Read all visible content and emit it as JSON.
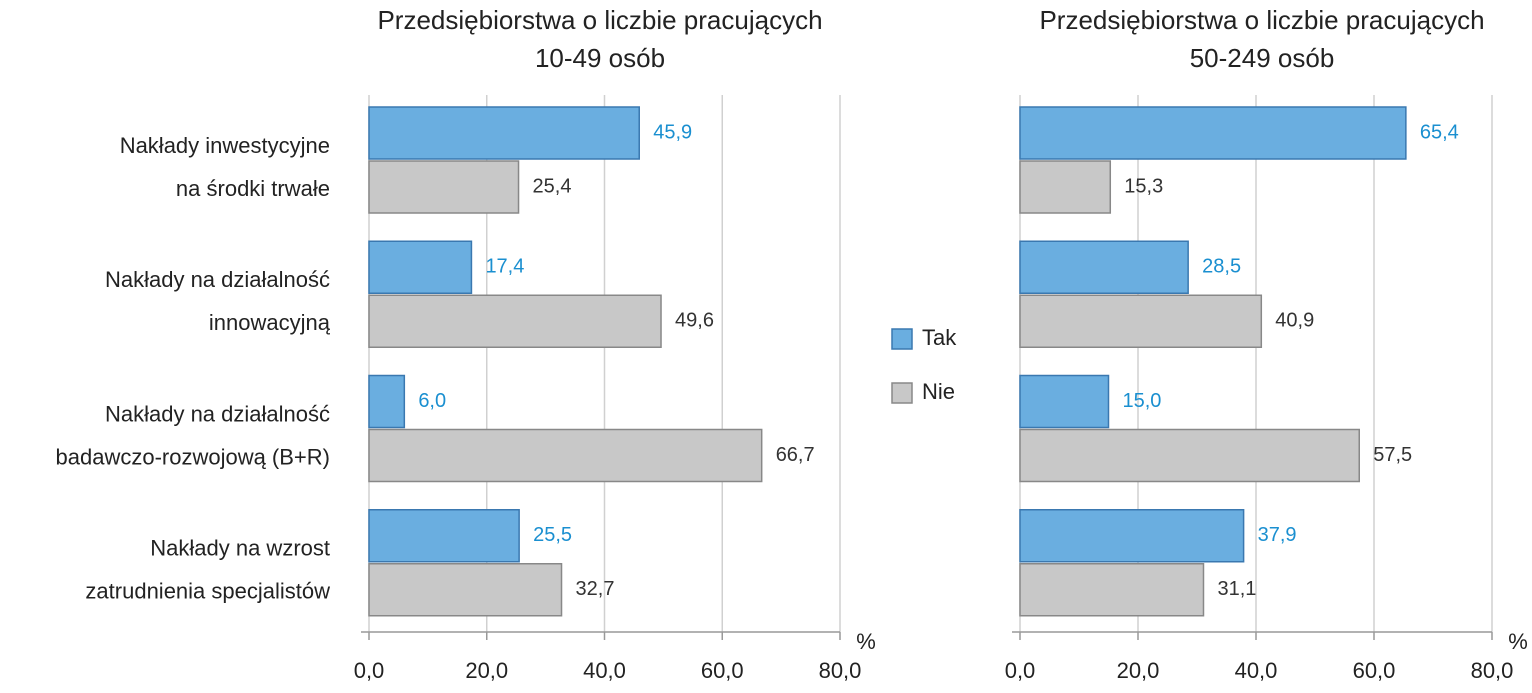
{
  "chart_data": [
    {
      "type": "bar",
      "orientation": "horizontal",
      "title": [
        "Przedsiębiorstwa o liczbie pracujących",
        "10-49 osób"
      ],
      "categories": [
        [
          "Nakłady inwestycyjne",
          "na środki trwałe"
        ],
        [
          "Nakłady na działalność",
          "innowacyjną"
        ],
        [
          "Nakłady na działalność",
          "badawczo-rozwojową (B+R)"
        ],
        [
          "Nakłady na wzrost",
          "zatrudnienia specjalistów"
        ]
      ],
      "series": [
        {
          "name": "Tak",
          "color": "#6aaee0",
          "label_color": "#1a8fd0",
          "values": [
            45.9,
            17.4,
            6.0,
            25.5
          ],
          "value_labels": [
            "45,9",
            "17,4",
            "6,0",
            "25,5"
          ]
        },
        {
          "name": "Nie",
          "color": "#c8c8c8",
          "label_color": "#333333",
          "values": [
            25.4,
            49.6,
            66.7,
            32.7
          ],
          "value_labels": [
            "25,4",
            "49,6",
            "66,7",
            "32,7"
          ]
        }
      ],
      "xlabel": "%",
      "xlim": [
        0,
        80
      ],
      "xticks": [
        {
          "value": 0,
          "label": "0,0"
        },
        {
          "value": 20,
          "label": "20,0"
        },
        {
          "value": 40,
          "label": "40,0"
        },
        {
          "value": 60,
          "label": "60,0"
        },
        {
          "value": 80,
          "label": "80,0"
        }
      ],
      "grid": true
    },
    {
      "type": "bar",
      "orientation": "horizontal",
      "title": [
        "Przedsiębiorstwa o liczbie pracujących",
        "50-249 osób"
      ],
      "series": [
        {
          "color": "#6aaee0",
          "label_color": "#1a8fd0",
          "values": [
            65.4,
            28.5,
            15.0,
            37.9
          ],
          "value_labels": [
            "65,4",
            "28,5",
            "15,0",
            "37,9"
          ]
        },
        {
          "color": "#c8c8c8",
          "label_color": "#333333",
          "values": [
            15.3,
            40.9,
            57.5,
            31.1
          ],
          "value_labels": [
            "15,3",
            "40,9",
            "57,5",
            "31,1"
          ]
        }
      ],
      "xlabel": "%",
      "xlim": [
        0,
        80
      ],
      "xticks": [
        {
          "value": 0,
          "label": "0,0"
        },
        {
          "value": 20,
          "label": "20,0"
        },
        {
          "value": 40,
          "label": "40,0"
        },
        {
          "value": 60,
          "label": "60,0"
        },
        {
          "value": 80,
          "label": "80,0"
        }
      ],
      "grid": true
    }
  ]
}
